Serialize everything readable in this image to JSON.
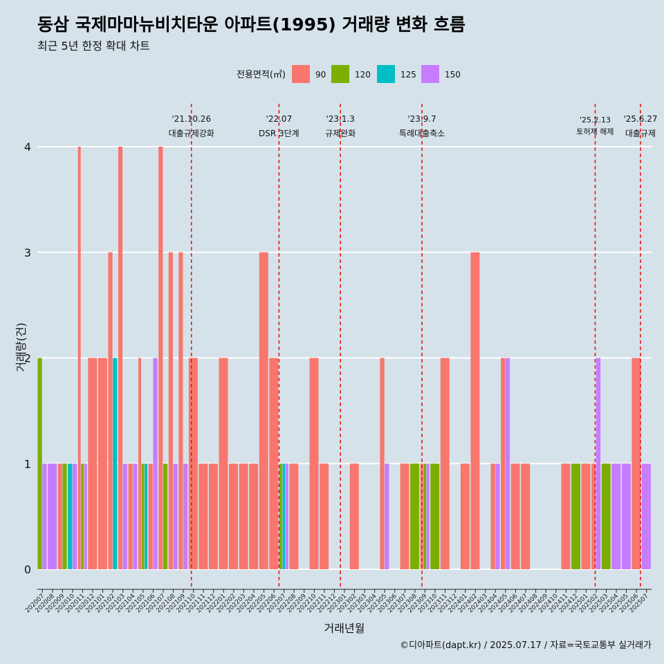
{
  "title": "동삼 국제마마뉴비치타운 아파트(1995) 거래량 변화 흐름",
  "subtitle": "최근 5년 한정 확대 차트",
  "caption": "©디아파트(dapt.kr) / 2025.07.17 / 자료=국토교통부 실거래가",
  "colors": {
    "background": "#d5e2ea",
    "grid": "#ffffff",
    "vline": "#e8161a"
  },
  "chart_data": {
    "type": "bar",
    "xlabel": "거래년월",
    "ylabel": "거래량(건)",
    "ylim": [
      0,
      4
    ],
    "yticks": [
      0,
      1,
      2,
      3,
      4
    ],
    "legend": {
      "title": "전용면적(㎡)",
      "position": "top",
      "entries": [
        {
          "label": "90",
          "color": "#f8766d"
        },
        {
          "label": "120",
          "color": "#7cae00"
        },
        {
          "label": "125",
          "color": "#00bfc4"
        },
        {
          "label": "150",
          "color": "#c77cff"
        }
      ]
    },
    "categories": [
      "202007",
      "202008",
      "202009",
      "202010",
      "202011",
      "202012",
      "202101",
      "202102",
      "202103",
      "202104",
      "202105",
      "202106",
      "202107",
      "202108",
      "202109",
      "202110",
      "202111",
      "202112",
      "202201",
      "202202",
      "202203",
      "202204",
      "202205",
      "202206",
      "202207",
      "202208",
      "202209",
      "202210",
      "202211",
      "202212",
      "202301",
      "202302",
      "202303",
      "202304",
      "202305",
      "202306",
      "202307",
      "202308",
      "202309",
      "202310",
      "202311",
      "202312",
      "202401",
      "202402",
      "202403",
      "202404",
      "202405",
      "202406",
      "202407",
      "202408",
      "202409",
      "202410",
      "202411",
      "202412",
      "202501",
      "202502",
      "202503",
      "202504",
      "202505",
      "202506",
      "202507"
    ],
    "series": [
      {
        "name": "90",
        "values": [
          0,
          0,
          1,
          0,
          4,
          2,
          2,
          3,
          4,
          1,
          2,
          1,
          4,
          3,
          3,
          2,
          1,
          1,
          2,
          1,
          1,
          1,
          3,
          2,
          0,
          1,
          0,
          2,
          1,
          0,
          0,
          1,
          0,
          0,
          2,
          0,
          1,
          0,
          1,
          0,
          2,
          0,
          1,
          3,
          0,
          1,
          2,
          1,
          1,
          0,
          0,
          0,
          1,
          0,
          1,
          1,
          0,
          0,
          0,
          2,
          0
        ]
      },
      {
        "name": "120",
        "values": [
          2,
          0,
          1,
          0,
          1,
          0,
          0,
          0,
          0,
          0,
          1,
          0,
          1,
          0,
          0,
          0,
          0,
          0,
          0,
          0,
          0,
          0,
          0,
          0,
          1,
          0,
          0,
          0,
          0,
          0,
          0,
          0,
          0,
          0,
          0,
          0,
          0,
          1,
          1,
          1,
          0,
          0,
          0,
          0,
          0,
          0,
          0,
          0,
          0,
          0,
          0,
          0,
          0,
          1,
          0,
          0,
          1,
          0,
          0,
          0,
          0
        ]
      },
      {
        "name": "125",
        "values": [
          0,
          0,
          0,
          1,
          0,
          0,
          0,
          2,
          0,
          0,
          1,
          0,
          0,
          0,
          0,
          0,
          0,
          0,
          0,
          0,
          0,
          0,
          0,
          0,
          1,
          0,
          0,
          0,
          0,
          0,
          0,
          0,
          0,
          0,
          0,
          0,
          0,
          0,
          0,
          0,
          0,
          0,
          0,
          0,
          0,
          0,
          0,
          0,
          0,
          0,
          0,
          0,
          0,
          0,
          0,
          0,
          0,
          0,
          0,
          0,
          0
        ]
      },
      {
        "name": "150",
        "values": [
          1,
          1,
          0,
          1,
          1,
          0,
          0,
          0,
          1,
          1,
          0,
          2,
          0,
          1,
          1,
          0,
          0,
          0,
          0,
          0,
          0,
          0,
          0,
          0,
          1,
          0,
          0,
          0,
          0,
          0,
          0,
          0,
          0,
          0,
          1,
          0,
          0,
          0,
          1,
          0,
          0,
          0,
          0,
          0,
          0,
          1,
          2,
          0,
          0,
          0,
          0,
          0,
          0,
          0,
          0,
          2,
          0,
          1,
          1,
          0,
          1
        ]
      }
    ],
    "events": [
      {
        "date": "'21.10.26",
        "label": "대출규제강화",
        "at": "202110",
        "offset": 0.3
      },
      {
        "date": "'22.07",
        "label": "DSR 3단계",
        "at": "202207",
        "offset": 0.0
      },
      {
        "date": "'23.1.3",
        "label": "규제완화",
        "at": "202301",
        "offset": 0.1
      },
      {
        "date": "'23.9.7",
        "label": "특례대출축소",
        "at": "202309",
        "offset": 0.2
      },
      {
        "date": "'25.2.13",
        "label": "토허제 해제",
        "at": "202502",
        "offset": 0.4
      },
      {
        "date": "'25.6.27",
        "label": "대출규제",
        "at": "202506",
        "offset": 0.9
      }
    ]
  }
}
